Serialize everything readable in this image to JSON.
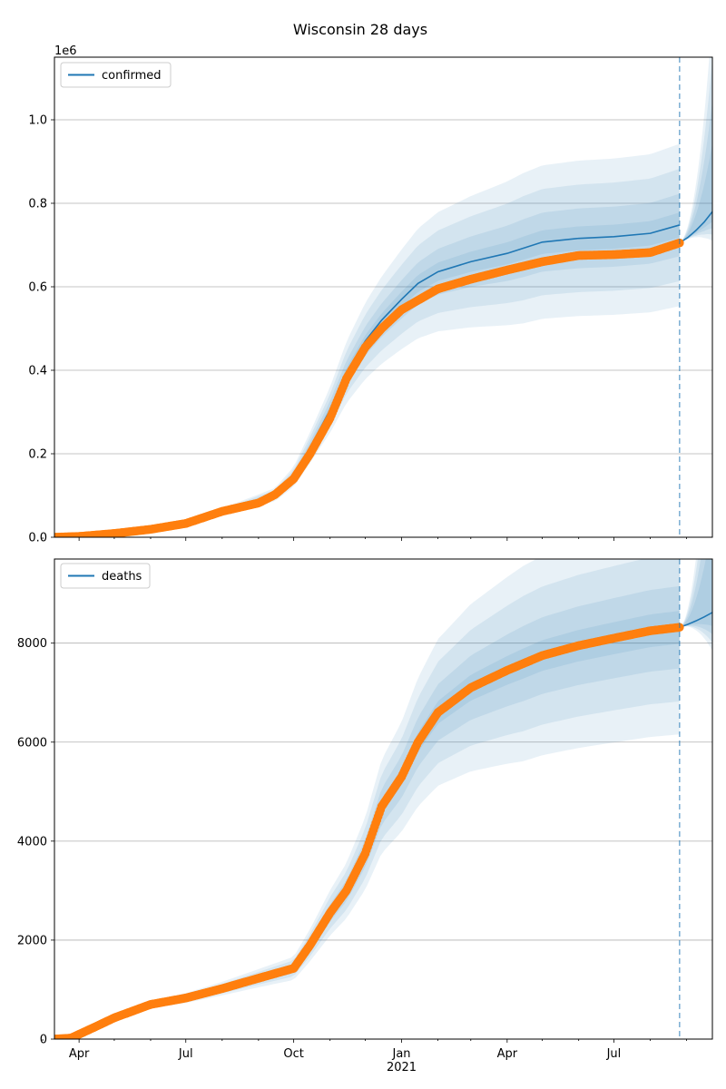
{
  "figure_title": "Wisconsin 28 days",
  "chart_data": [
    {
      "type": "line",
      "legend": "confirmed",
      "legend_placement": "top-left",
      "exponent_label": "1e6",
      "ylim": [
        0,
        1150000
      ],
      "xlim": [
        "2020-03-11",
        "2021-09-23"
      ],
      "yticks": [
        0,
        200000,
        400000,
        600000,
        800000,
        1000000
      ],
      "ytick_labels": [
        "0.0",
        "0.2",
        "0.4",
        "0.6",
        "0.8",
        "1.0"
      ],
      "grid": "horizontal",
      "forecast_start": "2021-08-26",
      "observed": {
        "dates": [
          "2020-03-11",
          "2020-04-01",
          "2020-05-01",
          "2020-06-01",
          "2020-07-01",
          "2020-08-01",
          "2020-09-01",
          "2020-09-15",
          "2020-10-01",
          "2020-10-15",
          "2020-11-01",
          "2020-11-15",
          "2020-12-01",
          "2020-12-15",
          "2021-01-01",
          "2021-02-01",
          "2021-03-01",
          "2021-04-01",
          "2021-05-01",
          "2021-06-01",
          "2021-07-01",
          "2021-08-01",
          "2021-08-26"
        ],
        "values": [
          0,
          2000,
          9000,
          19000,
          33000,
          62000,
          82000,
          102000,
          140000,
          200000,
          285000,
          380000,
          455000,
          500000,
          545000,
          595000,
          618000,
          640000,
          660000,
          675000,
          677000,
          682000,
          705000
        ]
      },
      "fit": {
        "dates": [
          "2020-03-11",
          "2020-07-01",
          "2020-09-15",
          "2020-10-01",
          "2020-10-15",
          "2020-11-01",
          "2020-11-15",
          "2020-12-01",
          "2020-12-15",
          "2021-01-01",
          "2021-01-15",
          "2021-02-01",
          "2021-03-01",
          "2021-04-01",
          "2021-05-01",
          "2021-06-01",
          "2021-07-01",
          "2021-08-01",
          "2021-08-26"
        ],
        "values": [
          0,
          33000,
          102000,
          145000,
          215000,
          305000,
          395000,
          470000,
          520000,
          570000,
          608000,
          636000,
          660000,
          680000,
          707000,
          716000,
          720000,
          728000,
          748000
        ]
      },
      "forecast": {
        "dates": [
          "2021-08-26",
          "2021-09-02",
          "2021-09-09",
          "2021-09-16",
          "2021-09-23"
        ],
        "values": [
          705000,
          718000,
          735000,
          755000,
          780000
        ]
      }
    },
    {
      "type": "line",
      "legend": "deaths",
      "legend_placement": "top-left",
      "ylim": [
        0,
        9700
      ],
      "xlim": [
        "2020-03-11",
        "2021-09-23"
      ],
      "yticks": [
        0,
        2000,
        4000,
        6000,
        8000
      ],
      "ytick_labels": [
        "0",
        "2000",
        "4000",
        "6000",
        "8000"
      ],
      "xticks": [
        "2020-04-01",
        "2020-07-01",
        "2020-10-01",
        "2021-01-01",
        "2021-04-01",
        "2021-07-01"
      ],
      "xtick_labels": [
        "Apr",
        "Jul",
        "Oct",
        "Jan\n2021",
        "Apr",
        "Jul"
      ],
      "grid": "horizontal",
      "forecast_start": "2021-08-26",
      "observed": {
        "dates": [
          "2020-03-11",
          "2020-03-25",
          "2020-04-15",
          "2020-05-01",
          "2020-06-01",
          "2020-07-01",
          "2020-08-01",
          "2020-09-01",
          "2020-10-01",
          "2020-10-15",
          "2020-11-01",
          "2020-11-15",
          "2020-12-01",
          "2020-12-15",
          "2021-01-01",
          "2021-01-15",
          "2021-02-01",
          "2021-03-01",
          "2021-04-01",
          "2021-05-01",
          "2021-06-01",
          "2021-07-01",
          "2021-08-01",
          "2021-08-26"
        ],
        "values": [
          0,
          20,
          250,
          430,
          700,
          830,
          1020,
          1230,
          1430,
          1900,
          2550,
          3000,
          3750,
          4700,
          5300,
          6000,
          6600,
          7100,
          7450,
          7750,
          7950,
          8100,
          8250,
          8320
        ]
      },
      "forecast": {
        "dates": [
          "2021-08-26",
          "2021-09-02",
          "2021-09-09",
          "2021-09-16",
          "2021-09-23"
        ],
        "values": [
          8320,
          8380,
          8450,
          8530,
          8620
        ]
      }
    }
  ],
  "colors": {
    "observed": "#ff7f0e",
    "fit": "#1f77b4",
    "band": "#1f77b4",
    "grid": "#b0b0b0"
  }
}
